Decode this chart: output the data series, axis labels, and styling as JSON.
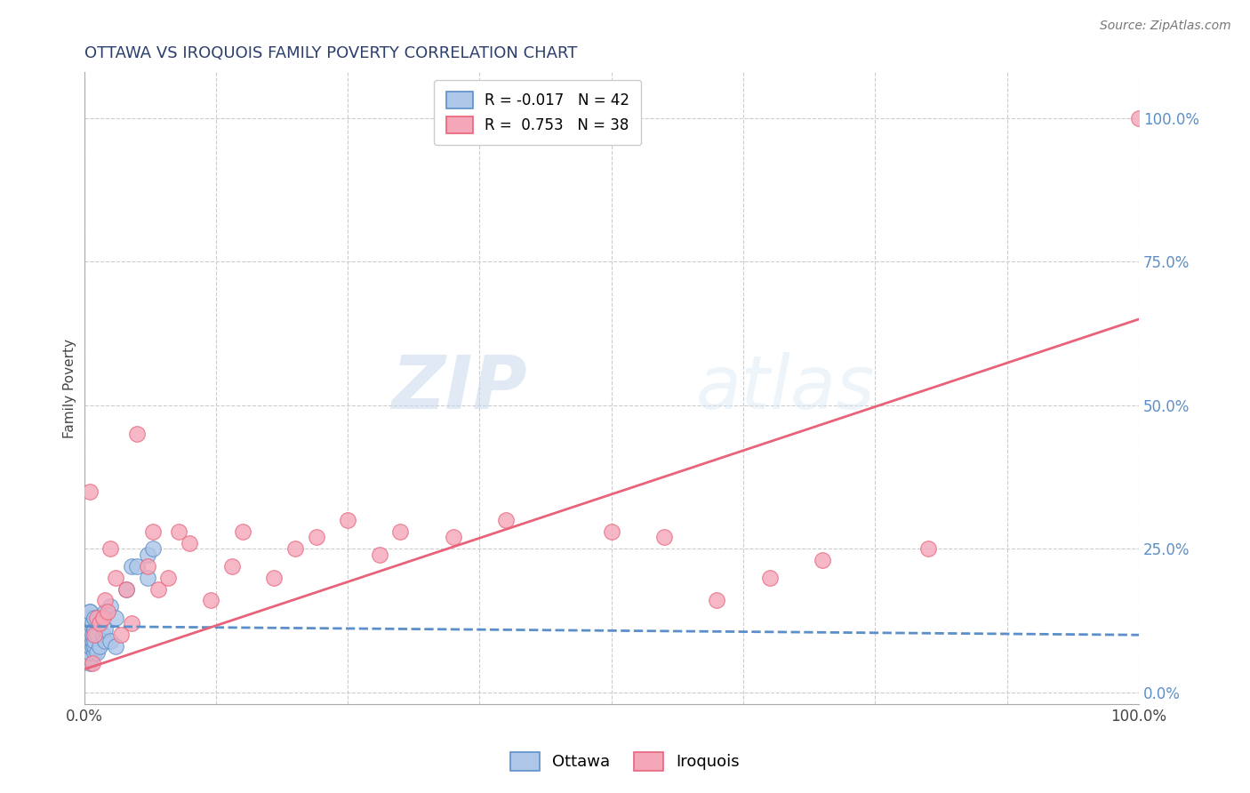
{
  "title": "OTTAWA VS IROQUOIS FAMILY POVERTY CORRELATION CHART",
  "source_text": "Source: ZipAtlas.com",
  "ylabel": "Family Poverty",
  "xlabel": "",
  "xlim": [
    0,
    1.0
  ],
  "ylim": [
    -0.02,
    1.08
  ],
  "xtick_labels": [
    "0.0%",
    "100.0%"
  ],
  "ytick_labels": [
    "0.0%",
    "25.0%",
    "50.0%",
    "75.0%",
    "100.0%"
  ],
  "ytick_vals": [
    0.0,
    0.25,
    0.5,
    0.75,
    1.0
  ],
  "watermark_zip": "ZIP",
  "watermark_atlas": "atlas",
  "legend_ottawa": "R = -0.017   N = 42",
  "legend_iroquois": "R =  0.753   N = 38",
  "ottawa_color": "#aec6e8",
  "iroquois_color": "#f4a7b9",
  "ottawa_line_color": "#5b8fc9",
  "iroquois_line_color": "#e8637a",
  "background_color": "#ffffff",
  "grid_color": "#cccccc",
  "title_color": "#2c3e6b",
  "source_color": "#777777",
  "ottawa_points_x": [
    0.005,
    0.005,
    0.005,
    0.005,
    0.005,
    0.005,
    0.005,
    0.005,
    0.005,
    0.005,
    0.005,
    0.005,
    0.005,
    0.005,
    0.005,
    0.008,
    0.008,
    0.008,
    0.008,
    0.01,
    0.01,
    0.01,
    0.01,
    0.01,
    0.012,
    0.012,
    0.015,
    0.015,
    0.018,
    0.02,
    0.02,
    0.02,
    0.025,
    0.025,
    0.03,
    0.03,
    0.04,
    0.045,
    0.05,
    0.06,
    0.06,
    0.065
  ],
  "ottawa_points_y": [
    0.05,
    0.06,
    0.07,
    0.08,
    0.08,
    0.09,
    0.1,
    0.1,
    0.11,
    0.12,
    0.12,
    0.13,
    0.13,
    0.14,
    0.14,
    0.08,
    0.09,
    0.1,
    0.12,
    0.07,
    0.08,
    0.09,
    0.11,
    0.13,
    0.07,
    0.1,
    0.08,
    0.12,
    0.1,
    0.09,
    0.11,
    0.14,
    0.09,
    0.15,
    0.08,
    0.13,
    0.18,
    0.22,
    0.22,
    0.2,
    0.24,
    0.25
  ],
  "iroquois_points_x": [
    0.005,
    0.008,
    0.01,
    0.012,
    0.015,
    0.018,
    0.02,
    0.022,
    0.025,
    0.03,
    0.035,
    0.04,
    0.045,
    0.05,
    0.06,
    0.065,
    0.07,
    0.08,
    0.09,
    0.1,
    0.12,
    0.14,
    0.15,
    0.18,
    0.2,
    0.22,
    0.25,
    0.28,
    0.3,
    0.35,
    0.4,
    0.5,
    0.55,
    0.6,
    0.65,
    0.7,
    0.8,
    1.0
  ],
  "iroquois_points_y": [
    0.35,
    0.05,
    0.1,
    0.13,
    0.12,
    0.13,
    0.16,
    0.14,
    0.25,
    0.2,
    0.1,
    0.18,
    0.12,
    0.45,
    0.22,
    0.28,
    0.18,
    0.2,
    0.28,
    0.26,
    0.16,
    0.22,
    0.28,
    0.2,
    0.25,
    0.27,
    0.3,
    0.24,
    0.28,
    0.27,
    0.3,
    0.28,
    0.27,
    0.16,
    0.2,
    0.23,
    0.25,
    1.0
  ],
  "iroquois_trend_x0": 0.0,
  "iroquois_trend_y0": 0.04,
  "iroquois_trend_x1": 1.0,
  "iroquois_trend_y1": 0.65,
  "ottawa_trend_x0": 0.0,
  "ottawa_trend_y0": 0.115,
  "ottawa_trend_x1": 1.0,
  "ottawa_trend_y1": 0.1
}
